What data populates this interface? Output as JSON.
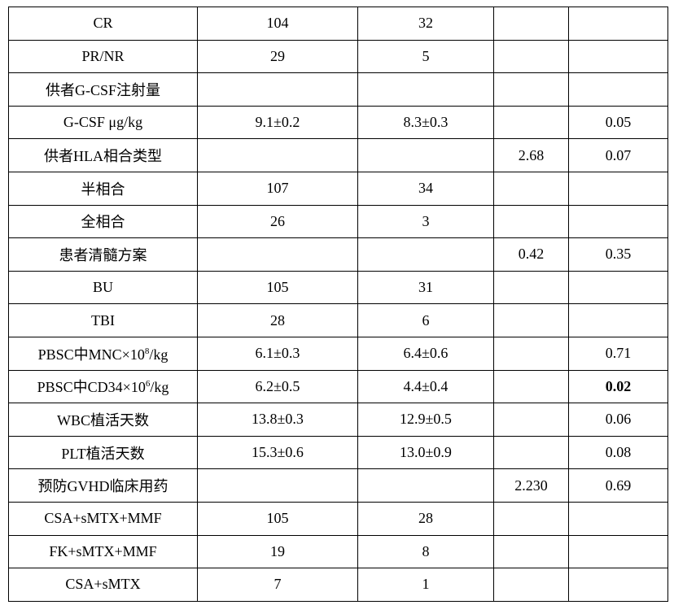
{
  "rows": [
    {
      "label": "CR",
      "c1": "104",
      "c2": "32",
      "c3": "",
      "c4": ""
    },
    {
      "label": "PR/NR",
      "c1": "29",
      "c2": "5",
      "c3": "",
      "c4": ""
    },
    {
      "label": "供者G-CSF注射量",
      "c1": "",
      "c2": "",
      "c3": "",
      "c4": ""
    },
    {
      "label": "G-CSF μg/kg",
      "c1": "9.1±0.2",
      "c2": "8.3±0.3",
      "c3": "",
      "c4": "0.05"
    },
    {
      "label": "供者HLA相合类型",
      "c1": "",
      "c2": "",
      "c3": "2.68",
      "c4": "0.07"
    },
    {
      "label": "半相合",
      "c1": "107",
      "c2": "34",
      "c3": "",
      "c4": ""
    },
    {
      "label": "全相合",
      "c1": "26",
      "c2": "3",
      "c3": "",
      "c4": ""
    },
    {
      "label": "患者清髓方案",
      "c1": "",
      "c2": "",
      "c3": "0.42",
      "c4": "0.35"
    },
    {
      "label": "BU",
      "c1": "105",
      "c2": "31",
      "c3": "",
      "c4": ""
    },
    {
      "label": "TBI",
      "c1": "28",
      "c2": "6",
      "c3": "",
      "c4": ""
    },
    {
      "label": "PBSC中MNC×10",
      "sup": "8",
      "suffix": "/kg",
      "c1": "6.1±0.3",
      "c2": "6.4±0.6",
      "c3": "",
      "c4": "0.71"
    },
    {
      "label": "PBSC中CD34×10",
      "sup": "6",
      "suffix": "/kg",
      "c1": "6.2±0.5",
      "c2": "4.4±0.4",
      "c3": "",
      "c4": "0.02",
      "bold": true
    },
    {
      "label": "WBC植活天数",
      "c1": "13.8±0.3",
      "c2": "12.9±0.5",
      "c3": "",
      "c4": "0.06"
    },
    {
      "label": "PLT植活天数",
      "c1": "15.3±0.6",
      "c2": "13.0±0.9",
      "c3": "",
      "c4": "0.08"
    },
    {
      "label": "预防GVHD临床用药",
      "c1": "",
      "c2": "",
      "c3": "2.230",
      "c4": "0.69"
    },
    {
      "label": "CSA+sMTX+MMF",
      "c1": "105",
      "c2": "28",
      "c3": "",
      "c4": ""
    },
    {
      "label": "FK+sMTX+MMF",
      "c1": "19",
      "c2": "8",
      "c3": "",
      "c4": ""
    },
    {
      "label": "CSA+sMTX",
      "c1": "7",
      "c2": "1",
      "c3": "",
      "c4": ""
    }
  ]
}
